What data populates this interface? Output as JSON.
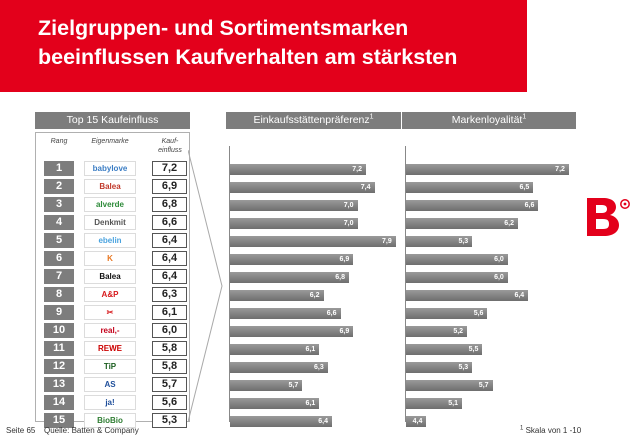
{
  "header": {
    "title_line1": "Zielgruppen- und Sortimentsmarken",
    "title_line2": "beeinflussen Kaufverhalten am stärksten"
  },
  "logo": {
    "name": "bain-logo-icon",
    "color": "#e3001b"
  },
  "colors": {
    "accent": "#e3001b",
    "grey": "#7d7d7d"
  },
  "ranking": {
    "header": "Top 15 Kaufeinfluss",
    "col_rang": "Rang",
    "col_eigenmarke": "Eigenmarke",
    "col_kaufeinfluss_1": "Kauf-",
    "col_kaufeinfluss_2": "einfluss",
    "rows": [
      {
        "rank": "1",
        "brand": "babylove",
        "brand_color": "#3b7dc4",
        "score": "7,2"
      },
      {
        "rank": "2",
        "brand": "Balea",
        "brand_color": "#c0392b",
        "score": "6,9"
      },
      {
        "rank": "3",
        "brand": "alverde",
        "brand_color": "#2e8b3a",
        "score": "6,8"
      },
      {
        "rank": "4",
        "brand": "Denkmit",
        "brand_color": "#555555",
        "score": "6,6"
      },
      {
        "rank": "5",
        "brand": "ebelin",
        "brand_color": "#4aa3df",
        "score": "6,4"
      },
      {
        "rank": "6",
        "brand": "K",
        "brand_color": "#e87722",
        "score": "6,4"
      },
      {
        "rank": "7",
        "brand": "Balea",
        "brand_color": "#111111",
        "score": "6,4"
      },
      {
        "rank": "8",
        "brand": "A&P",
        "brand_color": "#d7191c",
        "score": "6,3"
      },
      {
        "rank": "9",
        "brand": "✂",
        "brand_color": "#d7191c",
        "score": "6,1"
      },
      {
        "rank": "10",
        "brand": "real,-",
        "brand_color": "#c4001a",
        "score": "6,0"
      },
      {
        "rank": "11",
        "brand": "REWE",
        "brand_color": "#cc0000",
        "score": "5,8"
      },
      {
        "rank": "12",
        "brand": "TiP",
        "brand_color": "#1b5e20",
        "score": "5,8"
      },
      {
        "rank": "13",
        "brand": "AS",
        "brand_color": "#1e4e9a",
        "score": "5,7"
      },
      {
        "rank": "14",
        "brand": "ja!",
        "brand_color": "#1e4e9a",
        "score": "5,6"
      },
      {
        "rank": "15",
        "brand": "BioBio",
        "brand_color": "#2e7d32",
        "score": "5,3"
      }
    ]
  },
  "chart_data": [
    {
      "type": "bar",
      "orientation": "horizontal",
      "title": "Einkaufsstättenpräferenz",
      "title_sup": "1",
      "categories": [
        "1",
        "2",
        "3",
        "4",
        "5",
        "6",
        "7",
        "8",
        "9",
        "10",
        "11",
        "12",
        "13",
        "14",
        "15"
      ],
      "values": [
        7.2,
        7.4,
        7.0,
        7.0,
        7.9,
        6.9,
        6.8,
        6.2,
        6.6,
        6.9,
        6.1,
        6.3,
        5.7,
        6.1,
        6.4
      ],
      "value_labels": [
        "7,2",
        "7,4",
        "7,0",
        "7,0",
        "7,9",
        "6,9",
        "6,8",
        "6,2",
        "6,6",
        "6,9",
        "6,1",
        "6,3",
        "5,7",
        "6,1",
        "6,4"
      ],
      "xlim": [
        4.0,
        8.0
      ]
    },
    {
      "type": "bar",
      "orientation": "horizontal",
      "title": "Markenloyalität",
      "title_sup": "1",
      "categories": [
        "1",
        "2",
        "3",
        "4",
        "5",
        "6",
        "7",
        "8",
        "9",
        "10",
        "11",
        "12",
        "13",
        "14",
        "15"
      ],
      "values": [
        7.2,
        6.5,
        6.6,
        6.2,
        5.3,
        6.0,
        6.0,
        6.4,
        5.6,
        5.2,
        5.5,
        5.3,
        5.7,
        5.1,
        4.4
      ],
      "value_labels": [
        "7,2",
        "6,5",
        "6,6",
        "6,2",
        "5,3",
        "6,0",
        "6,0",
        "6,4",
        "5,6",
        "5,2",
        "5,5",
        "5,3",
        "5,7",
        "5,1",
        "4,4"
      ],
      "xlim": [
        4.0,
        7.3
      ]
    }
  ],
  "footer": {
    "page": "Seite 65",
    "source": "Quelle: Batten & Company",
    "note_sup": "1",
    "note": "Skala von 1 -10"
  }
}
